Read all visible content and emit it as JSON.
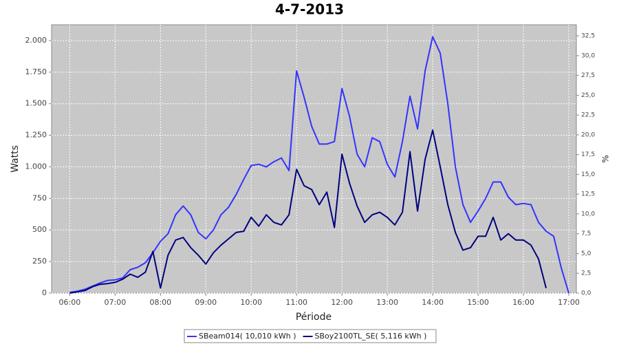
{
  "chart_data": {
    "type": "line",
    "title": "4-7-2013",
    "xlabel": "Période",
    "ylabel": "Watts",
    "y2label": "%",
    "x": [
      "06:00",
      "06:10",
      "06:20",
      "06:30",
      "06:40",
      "06:50",
      "07:00",
      "07:10",
      "07:20",
      "07:30",
      "07:40",
      "07:50",
      "08:00",
      "08:10",
      "08:20",
      "08:30",
      "08:40",
      "08:50",
      "09:00",
      "09:10",
      "09:20",
      "09:30",
      "09:40",
      "09:50",
      "10:00",
      "10:10",
      "10:20",
      "10:30",
      "10:40",
      "10:50",
      "11:00",
      "11:10",
      "11:20",
      "11:30",
      "11:40",
      "11:50",
      "12:00",
      "12:10",
      "12:20",
      "12:30",
      "12:40",
      "12:50",
      "13:00",
      "13:10",
      "13:20",
      "13:30",
      "13:40",
      "13:50",
      "14:00",
      "14:10",
      "14:20",
      "14:30",
      "14:40",
      "14:50",
      "15:00",
      "15:10",
      "15:20",
      "15:30",
      "15:40",
      "15:50",
      "16:00",
      "16:10",
      "16:20",
      "16:30",
      "16:40",
      "16:50",
      "17:00"
    ],
    "series": [
      {
        "name": "SBeam014( 10,010 kWh )",
        "color": "#3333ff",
        "values": [
          5,
          15,
          30,
          55,
          80,
          100,
          105,
          120,
          185,
          205,
          240,
          320,
          410,
          470,
          620,
          690,
          620,
          480,
          430,
          500,
          620,
          680,
          780,
          900,
          1010,
          1020,
          1000,
          1040,
          1070,
          970,
          1760,
          1550,
          1320,
          1180,
          1180,
          1200,
          1620,
          1400,
          1100,
          1000,
          1230,
          1200,
          1020,
          920,
          1200,
          1560,
          1300,
          1760,
          2030,
          1900,
          1500,
          1000,
          700,
          560,
          650,
          750,
          880,
          880,
          760,
          700,
          710,
          700,
          560,
          490,
          450,
          200,
          0
        ]
      },
      {
        "name": "SBoy2100TL_SE( 5,116 kWh )",
        "color": "#000080",
        "values": [
          0,
          10,
          20,
          50,
          70,
          75,
          85,
          110,
          150,
          125,
          165,
          330,
          40,
          300,
          420,
          440,
          360,
          300,
          230,
          320,
          380,
          430,
          480,
          490,
          600,
          530,
          620,
          560,
          540,
          620,
          980,
          850,
          820,
          700,
          800,
          520,
          1100,
          870,
          690,
          560,
          620,
          640,
          600,
          540,
          640,
          1120,
          650,
          1060,
          1290,
          1000,
          700,
          480,
          340,
          360,
          450,
          450,
          600,
          420,
          470,
          420,
          420,
          380,
          270,
          40,
          null,
          null,
          null
        ]
      }
    ],
    "xlim": [
      "05:36",
      "17:10"
    ],
    "xticks": [
      "06:00",
      "07:00",
      "08:00",
      "09:00",
      "10:00",
      "11:00",
      "12:00",
      "13:00",
      "14:00",
      "15:00",
      "16:00",
      "17:00"
    ],
    "ylim": [
      0,
      2125
    ],
    "yticks": [
      0,
      250,
      500,
      750,
      {
        "value": 1000,
        "label": "1.000"
      },
      {
        "value": 1250,
        "label": "1.250"
      },
      {
        "value": 1500,
        "label": "1.500"
      },
      {
        "value": 1750,
        "label": "1.750"
      },
      {
        "value": 2000,
        "label": "2.000"
      }
    ],
    "y2lim": [
      0,
      33.9
    ],
    "y2ticks": [
      {
        "value": 0,
        "label": "0,0"
      },
      {
        "value": 2.5,
        "label": "2,5"
      },
      {
        "value": 5,
        "label": "5,0"
      },
      {
        "value": 7.5,
        "label": "7,5"
      },
      {
        "value": 10,
        "label": "10,0"
      },
      {
        "value": 12.5,
        "label": "12,5"
      },
      {
        "value": 15,
        "label": "15,0"
      },
      {
        "value": 17.5,
        "label": "17,5"
      },
      {
        "value": 20,
        "label": "20,0"
      },
      {
        "value": 22.5,
        "label": "22,5"
      },
      {
        "value": 25,
        "label": "25,0"
      },
      {
        "value": 27.5,
        "label": "27,5"
      },
      {
        "value": 30,
        "label": "30,0"
      },
      {
        "value": 32.5,
        "label": "32,5"
      }
    ],
    "grid": true,
    "legend": "bottom"
  }
}
